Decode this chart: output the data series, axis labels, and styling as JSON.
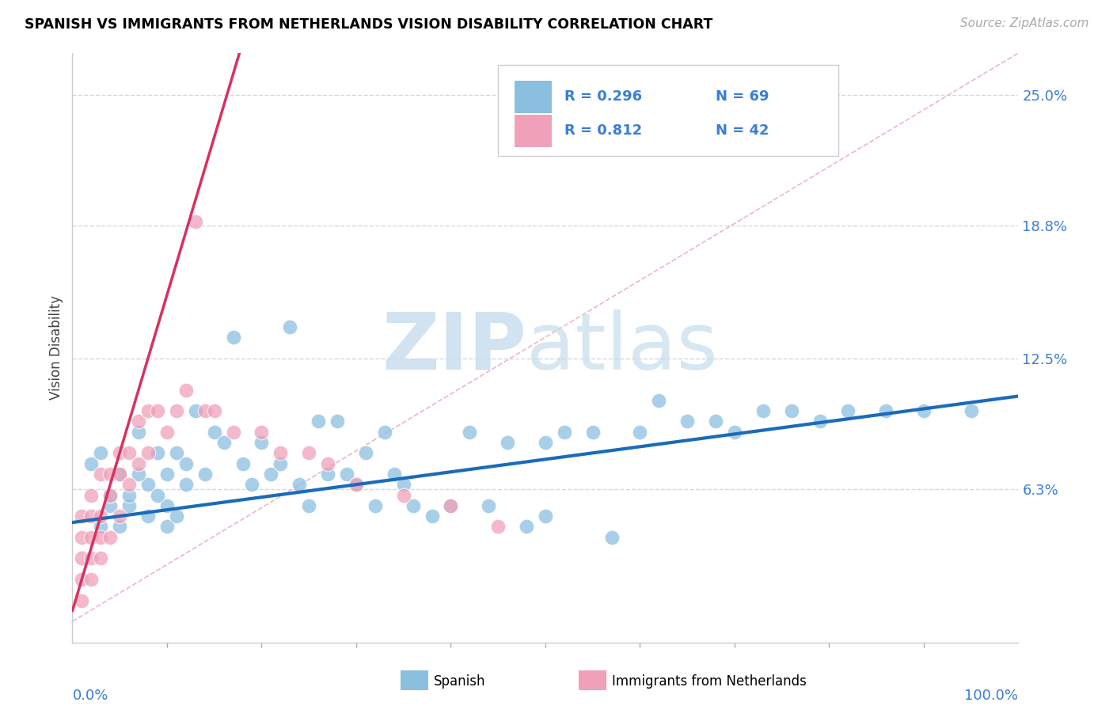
{
  "title": "SPANISH VS IMMIGRANTS FROM NETHERLANDS VISION DISABILITY CORRELATION CHART",
  "source": "Source: ZipAtlas.com",
  "ylabel": "Vision Disability",
  "ytick_vals": [
    0.063,
    0.125,
    0.188,
    0.25
  ],
  "ytick_labels": [
    "6.3%",
    "12.5%",
    "18.8%",
    "25.0%"
  ],
  "xlim": [
    0,
    100
  ],
  "ylim": [
    -0.01,
    0.27
  ],
  "legend_r1": "R = 0.296",
  "legend_n1": "N = 69",
  "legend_r2": "R = 0.812",
  "legend_n2": "N = 42",
  "blue_color": "#8bbfdf",
  "pink_color": "#f0a0b8",
  "blue_line_color": "#1a6bba",
  "pink_line_color": "#d93060",
  "diag_color": "#e8b0c0",
  "text_color_blue": "#3a7fd4",
  "text_color_n": "#3a7fd4",
  "grid_color": "#d0d8e8",
  "bg_color": "#ffffff",
  "watermark_zip_color": "#ccdff0",
  "watermark_atlas_color": "#c5dded",
  "blue_x": [
    2,
    3,
    4,
    5,
    6,
    7,
    8,
    9,
    10,
    10,
    11,
    12,
    12,
    13,
    14,
    15,
    16,
    17,
    18,
    19,
    20,
    21,
    22,
    23,
    24,
    25,
    26,
    27,
    28,
    29,
    30,
    31,
    32,
    33,
    34,
    35,
    36,
    38,
    40,
    42,
    44,
    46,
    48,
    50,
    50,
    52,
    55,
    57,
    60,
    62,
    65,
    68,
    70,
    73,
    76,
    79,
    82,
    86,
    90,
    95,
    3,
    4,
    5,
    6,
    7,
    8,
    9,
    10,
    11
  ],
  "blue_y": [
    0.075,
    0.08,
    0.055,
    0.07,
    0.055,
    0.09,
    0.065,
    0.08,
    0.07,
    0.055,
    0.08,
    0.065,
    0.075,
    0.1,
    0.07,
    0.09,
    0.085,
    0.135,
    0.075,
    0.065,
    0.085,
    0.07,
    0.075,
    0.14,
    0.065,
    0.055,
    0.095,
    0.07,
    0.095,
    0.07,
    0.065,
    0.08,
    0.055,
    0.09,
    0.07,
    0.065,
    0.055,
    0.05,
    0.055,
    0.09,
    0.055,
    0.085,
    0.045,
    0.085,
    0.05,
    0.09,
    0.09,
    0.04,
    0.09,
    0.105,
    0.095,
    0.095,
    0.09,
    0.1,
    0.1,
    0.095,
    0.1,
    0.1,
    0.1,
    0.1,
    0.045,
    0.06,
    0.045,
    0.06,
    0.07,
    0.05,
    0.06,
    0.045,
    0.05
  ],
  "pink_x": [
    1,
    1,
    1,
    1,
    1,
    2,
    2,
    2,
    2,
    2,
    3,
    3,
    3,
    3,
    4,
    4,
    4,
    5,
    5,
    5,
    6,
    6,
    7,
    7,
    8,
    8,
    9,
    10,
    11,
    12,
    13,
    14,
    15,
    17,
    20,
    22,
    25,
    27,
    30,
    35,
    40,
    45
  ],
  "pink_y": [
    0.02,
    0.03,
    0.04,
    0.05,
    0.01,
    0.02,
    0.03,
    0.04,
    0.05,
    0.06,
    0.03,
    0.04,
    0.05,
    0.07,
    0.04,
    0.06,
    0.07,
    0.05,
    0.07,
    0.08,
    0.065,
    0.08,
    0.075,
    0.095,
    0.08,
    0.1,
    0.1,
    0.09,
    0.1,
    0.11,
    0.19,
    0.1,
    0.1,
    0.09,
    0.09,
    0.08,
    0.08,
    0.075,
    0.065,
    0.06,
    0.055,
    0.045
  ],
  "blue_line_x0": 0,
  "blue_line_y0": 0.047,
  "blue_line_x1": 100,
  "blue_line_y1": 0.107,
  "pink_line_x0": 0,
  "pink_line_y0": 0.005,
  "pink_line_x1": 18,
  "pink_line_y1": 0.275
}
